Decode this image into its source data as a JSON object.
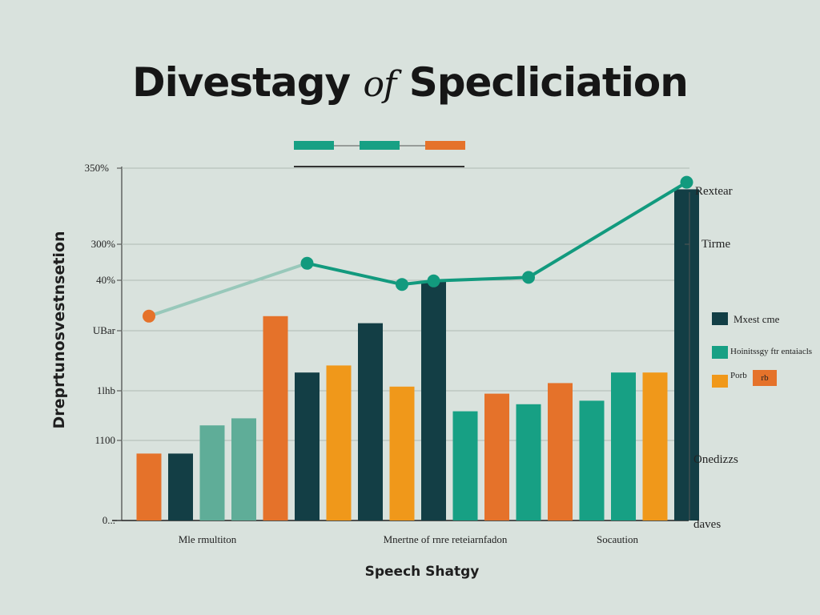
{
  "chart_data": {
    "type": "bar",
    "title_main": "Divestagy",
    "title_em": "of",
    "title_end": "Specliciation",
    "ylabel": "Dreprtunosvestnsetion",
    "xlabel": "Speech Shatgy",
    "yticks": [
      "350%",
      "300%",
      "40%",
      "UBar",
      "1lhb",
      "1100",
      "0..."
    ],
    "group_labels": [
      "Mle rmultiton",
      "Mnertne of rnre reteiarnfadon",
      "Socaution"
    ],
    "right_labels": [
      "Rextear",
      "Tirme",
      "Onedizzs",
      "daves"
    ],
    "legend": [
      {
        "label": "Mxest cme",
        "color": "#123e45"
      },
      {
        "label": "Hoinitssgy ftr entaiacls",
        "color": "#17a084"
      },
      {
        "label": "Porb",
        "color": "#f0981a"
      },
      {
        "label": "rb",
        "color": "#e5722a"
      }
    ],
    "ylim": [
      0,
      100
    ],
    "colors": {
      "dark": "#133e45",
      "teal": "#17a084",
      "lightteal": "#5fad98",
      "orange": "#f0981a",
      "red": "#e5722a",
      "line_faint": "#98c8ba",
      "line": "#129a7e"
    },
    "bars": [
      {
        "x": 1,
        "value": 19,
        "color": "red"
      },
      {
        "x": 2,
        "value": 19,
        "color": "dark"
      },
      {
        "x": 3,
        "value": 27,
        "color": "lightteal"
      },
      {
        "x": 4,
        "value": 29,
        "color": "lightteal"
      },
      {
        "x": 5,
        "value": 58,
        "color": "red"
      },
      {
        "x": 6,
        "value": 42,
        "color": "dark"
      },
      {
        "x": 7,
        "value": 44,
        "color": "orange"
      },
      {
        "x": 8,
        "value": 56,
        "color": "dark"
      },
      {
        "x": 9,
        "value": 38,
        "color": "orange"
      },
      {
        "x": 10,
        "value": 68,
        "color": "dark"
      },
      {
        "x": 11,
        "value": 31,
        "color": "teal"
      },
      {
        "x": 12,
        "value": 36,
        "color": "red"
      },
      {
        "x": 13,
        "value": 33,
        "color": "teal"
      },
      {
        "x": 14,
        "value": 39,
        "color": "red"
      },
      {
        "x": 15,
        "value": 34,
        "color": "teal"
      },
      {
        "x": 16,
        "value": 42,
        "color": "teal"
      },
      {
        "x": 17,
        "value": 42,
        "color": "orange"
      },
      {
        "x": 18,
        "value": 94,
        "color": "dark"
      }
    ],
    "line_points": [
      {
        "x": 1,
        "value": 58
      },
      {
        "x": 6,
        "value": 73
      },
      {
        "x": 9,
        "value": 67
      },
      {
        "x": 10,
        "value": 68
      },
      {
        "x": 13,
        "value": 69
      },
      {
        "x": 18,
        "value": 96
      }
    ]
  }
}
